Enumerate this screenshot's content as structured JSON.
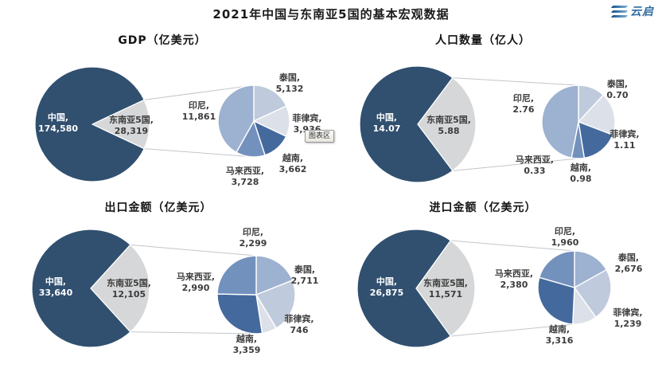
{
  "page_title": "2021年中国与东南亚5国的基本宏观数据",
  "logo": {
    "text": "云启"
  },
  "tooltip": {
    "text": "图表区"
  },
  "colors": {
    "china": "#31506F",
    "sea5": "#D6D7D8",
    "indonesia": "#9DB1D0",
    "thailand": "#BFCADD",
    "philippines": "#DCE0E9",
    "vietnam": "#44699C",
    "malaysia": "#7391BD",
    "connector": "#C2C6CB"
  },
  "chart_data": [
    {
      "id": "gdp",
      "type": "pie-of-pie",
      "title": "GDP（亿美元）",
      "primary": [
        {
          "key": "china",
          "label": "中国,",
          "value": 174580,
          "text": "174,580"
        },
        {
          "key": "sea5",
          "label": "东南亚5国,",
          "value": 28319,
          "text": "28,319"
        }
      ],
      "secondary": [
        {
          "key": "thailand",
          "label": "泰国,",
          "value": 5132,
          "text": "5,132"
        },
        {
          "key": "philippines",
          "label": "菲律宾,",
          "value": 3936,
          "text": "3,936"
        },
        {
          "key": "vietnam",
          "label": "越南,",
          "value": 3662,
          "text": "3,662"
        },
        {
          "key": "malaysia",
          "label": "马来西亚,",
          "value": 3728,
          "text": "3,728"
        },
        {
          "key": "indonesia",
          "label": "印尼,",
          "value": 11861,
          "text": "11,861"
        }
      ],
      "note": "菲律宾 value is partially hidden behind the 图表区 tooltip"
    },
    {
      "id": "population",
      "type": "pie-of-pie",
      "title": "人口数量（亿人）",
      "primary": [
        {
          "key": "china",
          "label": "中国,",
          "value": 14.07,
          "text": "14.07"
        },
        {
          "key": "sea5",
          "label": "东南亚5国,",
          "value": 5.88,
          "text": "5.88"
        }
      ],
      "secondary": [
        {
          "key": "thailand",
          "label": "泰国,",
          "value": 0.7,
          "text": "0.70"
        },
        {
          "key": "philippines",
          "label": "菲律宾,",
          "value": 1.11,
          "text": "1.11"
        },
        {
          "key": "vietnam",
          "label": "越南,",
          "value": 0.98,
          "text": "0.98"
        },
        {
          "key": "malaysia",
          "label": "马来西亚,",
          "value": 0.33,
          "text": "0.33"
        },
        {
          "key": "indonesia",
          "label": "印尼,",
          "value": 2.76,
          "text": "2.76"
        }
      ]
    },
    {
      "id": "export",
      "type": "pie-of-pie",
      "title": "出口金额（亿美元）",
      "primary": [
        {
          "key": "china",
          "label": "中国,",
          "value": 33640,
          "text": "33,640"
        },
        {
          "key": "sea5",
          "label": "东南亚5国,",
          "value": 12105,
          "text": "12,105"
        }
      ],
      "secondary": [
        {
          "key": "indonesia",
          "label": "印尼,",
          "value": 2299,
          "text": "2,299"
        },
        {
          "key": "thailand",
          "label": "泰国,",
          "value": 2711,
          "text": "2,711"
        },
        {
          "key": "philippines",
          "label": "菲律宾,",
          "value": 746,
          "text": "746"
        },
        {
          "key": "vietnam",
          "label": "越南,",
          "value": 3359,
          "text": "3,359"
        },
        {
          "key": "malaysia",
          "label": "马来西亚,",
          "value": 2990,
          "text": "2,990"
        }
      ]
    },
    {
      "id": "import",
      "type": "pie-of-pie",
      "title": "进口金额（亿美元）",
      "primary": [
        {
          "key": "china",
          "label": "中国,",
          "value": 26875,
          "text": "26,875"
        },
        {
          "key": "sea5",
          "label": "东南亚5国,",
          "value": 11571,
          "text": "11,571"
        }
      ],
      "secondary": [
        {
          "key": "indonesia",
          "label": "印尼,",
          "value": 1960,
          "text": "1,960"
        },
        {
          "key": "thailand",
          "label": "泰国,",
          "value": 2676,
          "text": "2,676"
        },
        {
          "key": "philippines",
          "label": "菲律宾,",
          "value": 1239,
          "text": "1,239"
        },
        {
          "key": "vietnam",
          "label": "越南,",
          "value": 3316,
          "text": "3,316"
        },
        {
          "key": "malaysia",
          "label": "马来西亚,",
          "value": 2380,
          "text": "2,380"
        }
      ]
    }
  ]
}
